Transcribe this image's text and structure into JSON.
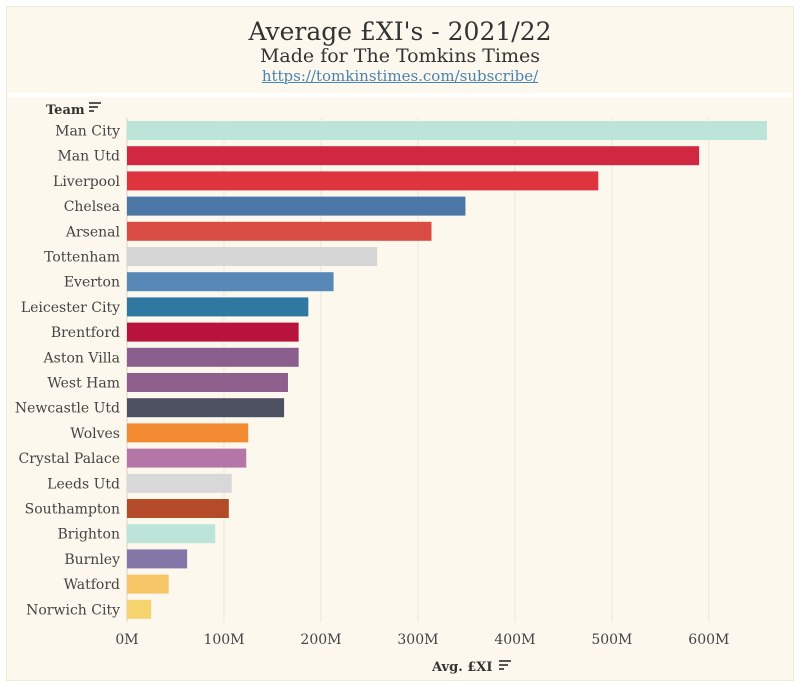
{
  "header": {
    "title": "Average £XI's - 2021/22",
    "subtitle": "Made for The Tomkins Times",
    "link": "https://tomkinstimes.com/subscribe/"
  },
  "chart_data": {
    "type": "bar",
    "orientation": "horizontal",
    "ylabel": "Team",
    "xlabel": "Avg. £XI",
    "xlim": [
      0,
      660
    ],
    "x_ticks": [
      "0M",
      "100M",
      "200M",
      "300M",
      "400M",
      "500M",
      "600M"
    ],
    "x_tick_values": [
      0,
      100,
      200,
      300,
      400,
      500,
      600
    ],
    "unit": "M",
    "grid": true,
    "categories": [
      "Man City",
      "Man Utd",
      "Liverpool",
      "Chelsea",
      "Arsenal",
      "Tottenham",
      "Everton",
      "Leicester City",
      "Brentford",
      "Aston Villa",
      "West Ham",
      "Newcastle Utd",
      "Wolves",
      "Crystal Palace",
      "Leeds Utd",
      "Southampton",
      "Brighton",
      "Burnley",
      "Watford",
      "Norwich City"
    ],
    "values": [
      660,
      590,
      486,
      349,
      314,
      258,
      213,
      187,
      177,
      177,
      166,
      162,
      125,
      123,
      108,
      105,
      91,
      62,
      43,
      25
    ],
    "colors": [
      "#bde4d8",
      "#d12841",
      "#dd3440",
      "#4b76a5",
      "#d94c43",
      "#d6d6d6",
      "#5788b8",
      "#2e78a2",
      "#b8133c",
      "#8b5f8d",
      "#8e5e8d",
      "#4d5061",
      "#f28a31",
      "#b476a6",
      "#d8d8d8",
      "#b44b28",
      "#bde4d8",
      "#8576a8",
      "#f5c566",
      "#f5d36e"
    ]
  }
}
